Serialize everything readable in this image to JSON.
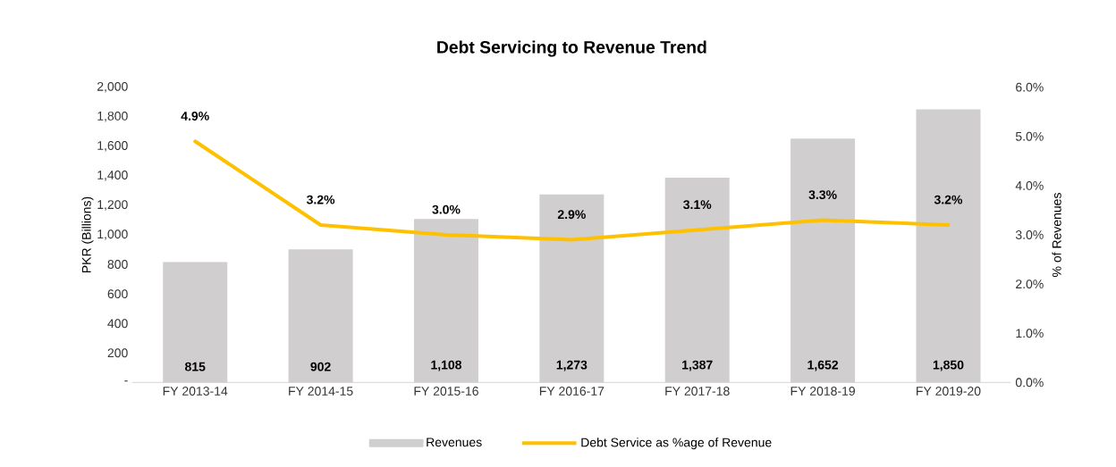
{
  "chart_data": {
    "type": "bar",
    "title": "Debt Servicing to Revenue Trend",
    "categories": [
      "FY 2013-14",
      "FY 2014-15",
      "FY 2015-16",
      "FY 2016-17",
      "FY 2017-18",
      "FY 2018-19",
      "FY 2019-20"
    ],
    "ylabel": "PKR (Billions)",
    "y2label": "% of Revenues",
    "ylim": [
      0,
      2000
    ],
    "yticks": [
      {
        "value": 0,
        "label": "-"
      },
      200,
      400,
      600,
      800,
      {
        "value": 1000,
        "label": "1,000"
      },
      {
        "value": 1200,
        "label": "1,200"
      },
      {
        "value": 1400,
        "label": "1,400"
      },
      {
        "value": 1600,
        "label": "1,600"
      },
      {
        "value": 1800,
        "label": "1,800"
      },
      {
        "value": 2000,
        "label": "2,000"
      }
    ],
    "y2lim": [
      0,
      6
    ],
    "y2ticks": [
      {
        "value": 0,
        "label": "0.0%"
      },
      {
        "value": 1,
        "label": "1.0%"
      },
      {
        "value": 2,
        "label": "2.0%"
      },
      {
        "value": 3,
        "label": "3.0%"
      },
      {
        "value": 4,
        "label": "4.0%"
      },
      {
        "value": 5,
        "label": "5.0%"
      },
      {
        "value": 6,
        "label": "6.0%"
      }
    ],
    "series": [
      {
        "name": "Revenues",
        "color": "#d0cece",
        "values": [
          815,
          902,
          1108,
          1273,
          1387,
          1652,
          1850
        ],
        "value_labels": [
          "815",
          "902",
          "1,108",
          "1,273",
          "1,387",
          "1,652",
          "1,850"
        ]
      },
      {
        "name": "Debt Service as %age of Revenue",
        "type": "line",
        "axis": "y2",
        "color": "#ffc000",
        "values": [
          4.9,
          3.2,
          3.0,
          2.9,
          3.1,
          3.3,
          3.2
        ],
        "value_labels": [
          "4.9%",
          "3.2%",
          "3.0%",
          "2.9%",
          "3.1%",
          "3.3%",
          "3.2%"
        ]
      }
    ],
    "legend": "bottom"
  }
}
